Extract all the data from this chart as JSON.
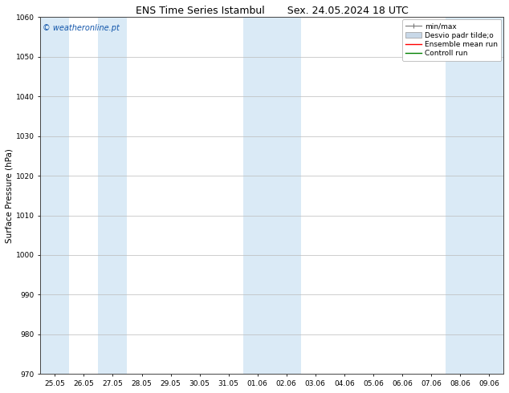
{
  "title_left": "ENS Time Series Istambul",
  "title_right": "Sex. 24.05.2024 18 UTC",
  "ylabel": "Surface Pressure (hPa)",
  "ylim": [
    970,
    1060
  ],
  "yticks": [
    970,
    980,
    990,
    1000,
    1010,
    1020,
    1030,
    1040,
    1050,
    1060
  ],
  "xtick_labels": [
    "25.05",
    "26.05",
    "27.05",
    "28.05",
    "29.05",
    "30.05",
    "31.05",
    "01.06",
    "02.06",
    "03.06",
    "04.06",
    "05.06",
    "06.06",
    "07.06",
    "08.06",
    "09.06"
  ],
  "shaded_indices": [
    0,
    2,
    7,
    8,
    14,
    15
  ],
  "shade_color": "#daeaf6",
  "watermark": "© weatheronline.pt",
  "legend_entries": [
    "min/max",
    "Desvio padr tilde;o",
    "Ensemble mean run",
    "Controll run"
  ],
  "legend_colors": [
    "#888888",
    "#c8d8e8",
    "#ff0000",
    "#008000"
  ],
  "bg_color": "#ffffff",
  "plot_bg": "#ffffff",
  "grid_color": "#bbbbbb",
  "title_fontsize": 9,
  "tick_fontsize": 6.5,
  "ylabel_fontsize": 7.5,
  "legend_fontsize": 6.5,
  "watermark_fontsize": 7
}
